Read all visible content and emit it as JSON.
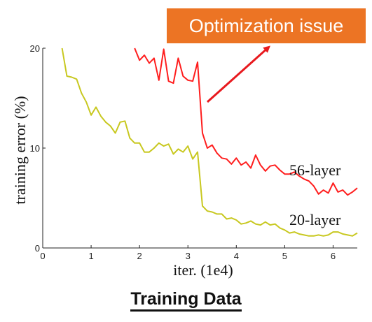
{
  "caption": "Training Data",
  "callout": {
    "text": "Optimization issue",
    "color": "#ec7424",
    "arrow_color": "#e8191e"
  },
  "chart_data": {
    "type": "line",
    "title": "",
    "xlabel": "iter. (1e4)",
    "ylabel": "training error (%)",
    "xlim": [
      0,
      6.5
    ],
    "ylim": [
      0,
      20
    ],
    "xticks": [
      0,
      1,
      2,
      3,
      4,
      5,
      6
    ],
    "yticks": [
      0,
      10,
      20
    ],
    "grid": false,
    "legend": "none",
    "series": [
      {
        "name": "56-layer",
        "color": "#ff1e1e",
        "x": [
          1.9,
          2.0,
          2.1,
          2.2,
          2.3,
          2.4,
          2.5,
          2.6,
          2.7,
          2.8,
          2.9,
          3.0,
          3.1,
          3.2,
          3.3,
          3.4,
          3.5,
          3.6,
          3.7,
          3.8,
          3.9,
          4.0,
          4.1,
          4.2,
          4.3,
          4.4,
          4.5,
          4.6,
          4.7,
          4.8,
          4.9,
          5.0,
          5.1,
          5.2,
          5.3,
          5.4,
          5.5,
          5.6,
          5.7,
          5.8,
          5.9,
          6.0,
          6.1,
          6.2,
          6.3,
          6.4,
          6.5
        ],
        "y": [
          20.0,
          18.8,
          19.3,
          18.5,
          19.0,
          16.8,
          19.9,
          16.7,
          16.5,
          19.0,
          17.2,
          16.8,
          16.7,
          18.6,
          11.5,
          10.0,
          10.3,
          9.5,
          9.0,
          8.9,
          8.4,
          9.0,
          8.3,
          8.6,
          8.0,
          9.3,
          8.3,
          7.7,
          8.2,
          8.3,
          7.8,
          7.4,
          7.4,
          7.6,
          7.2,
          6.9,
          6.7,
          6.2,
          5.4,
          5.8,
          5.5,
          6.5,
          5.6,
          5.8,
          5.3,
          5.6,
          6.0
        ]
      },
      {
        "name": "20-layer",
        "color": "#c8c820",
        "x": [
          0.4,
          0.5,
          0.6,
          0.7,
          0.8,
          0.9,
          1.0,
          1.1,
          1.2,
          1.3,
          1.4,
          1.5,
          1.6,
          1.7,
          1.8,
          1.9,
          2.0,
          2.1,
          2.2,
          2.3,
          2.4,
          2.5,
          2.6,
          2.7,
          2.8,
          2.9,
          3.0,
          3.1,
          3.2,
          3.3,
          3.4,
          3.5,
          3.6,
          3.7,
          3.8,
          3.9,
          4.0,
          4.1,
          4.2,
          4.3,
          4.4,
          4.5,
          4.6,
          4.7,
          4.8,
          4.9,
          5.0,
          5.1,
          5.2,
          5.3,
          5.4,
          5.5,
          5.6,
          5.7,
          5.8,
          5.9,
          6.0,
          6.1,
          6.2,
          6.3,
          6.4,
          6.5
        ],
        "y": [
          20.0,
          17.2,
          17.1,
          16.9,
          15.5,
          14.6,
          13.3,
          14.1,
          13.2,
          12.6,
          12.2,
          11.5,
          12.6,
          12.7,
          11.0,
          10.5,
          10.5,
          9.6,
          9.6,
          10.0,
          10.5,
          10.2,
          10.4,
          9.4,
          9.9,
          9.6,
          10.2,
          8.9,
          9.6,
          4.2,
          3.7,
          3.6,
          3.4,
          3.4,
          2.9,
          3.0,
          2.8,
          2.4,
          2.5,
          2.7,
          2.4,
          2.3,
          2.6,
          2.3,
          2.4,
          2.0,
          1.8,
          1.5,
          1.6,
          1.4,
          1.3,
          1.2,
          1.2,
          1.3,
          1.2,
          1.3,
          1.6,
          1.6,
          1.4,
          1.3,
          1.2,
          1.5
        ]
      }
    ]
  }
}
